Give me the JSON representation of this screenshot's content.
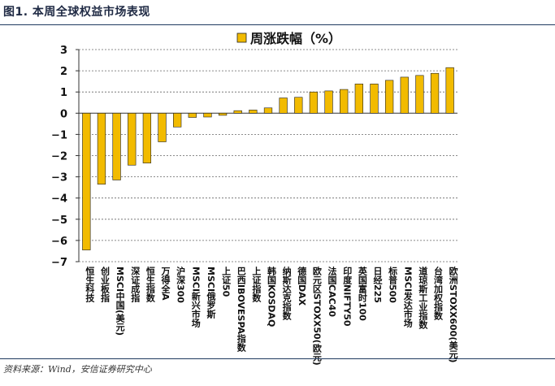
{
  "figure_title": "图1. 本周全球权益市场表现",
  "source": "资料来源：Wind，安信证券研究中心",
  "colors": {
    "bar_fill": "#f2bb00",
    "bar_stroke": "#222222",
    "grid": "#666666",
    "rule": "#1f3a5f"
  },
  "chart_data": {
    "type": "bar",
    "title": "",
    "legend": [
      "周涨跌幅（%）"
    ],
    "legend_position": "top-center",
    "xlabel": "",
    "ylabel": "",
    "ylim": [
      -7,
      3
    ],
    "yticks": [
      3,
      2,
      1,
      0,
      -1,
      -2,
      -3,
      -4,
      -5,
      -6,
      -7
    ],
    "ytick_labels": [
      "3",
      "2",
      "1",
      "0",
      "−1",
      "−2",
      "−3",
      "−4",
      "−5",
      "−6",
      "−7"
    ],
    "grid": "horizontal-dashed",
    "categories": [
      "恒生科技",
      "创业板指",
      "MSCI中国(美元)",
      "深证成指",
      "恒生指数",
      "万得全A",
      "沪深300",
      "MSCI新兴市场",
      "MSCI俄罗斯",
      "上证50",
      "巴西IBOVESPA指数",
      "上证指数",
      "韩国KOSDAQ",
      "纳斯达克指数",
      "德国DAX",
      "欧元区STOXX50(欧元)",
      "法国CAC40",
      "印度NIFTY50",
      "英国富时100",
      "日经225",
      "标普500",
      "MSCI发达市场",
      "道琼斯工业指数",
      "台湾加权指数",
      "欧洲STOXX600(美元)"
    ],
    "series": [
      {
        "name": "周涨跌幅（%）",
        "values": [
          -6.45,
          -3.35,
          -3.15,
          -2.45,
          -2.35,
          -1.35,
          -0.65,
          -0.2,
          -0.18,
          -0.1,
          0.12,
          0.15,
          0.25,
          0.72,
          0.75,
          1.0,
          1.05,
          1.12,
          1.38,
          1.38,
          1.55,
          1.7,
          1.78,
          1.88,
          2.15
        ]
      }
    ]
  }
}
